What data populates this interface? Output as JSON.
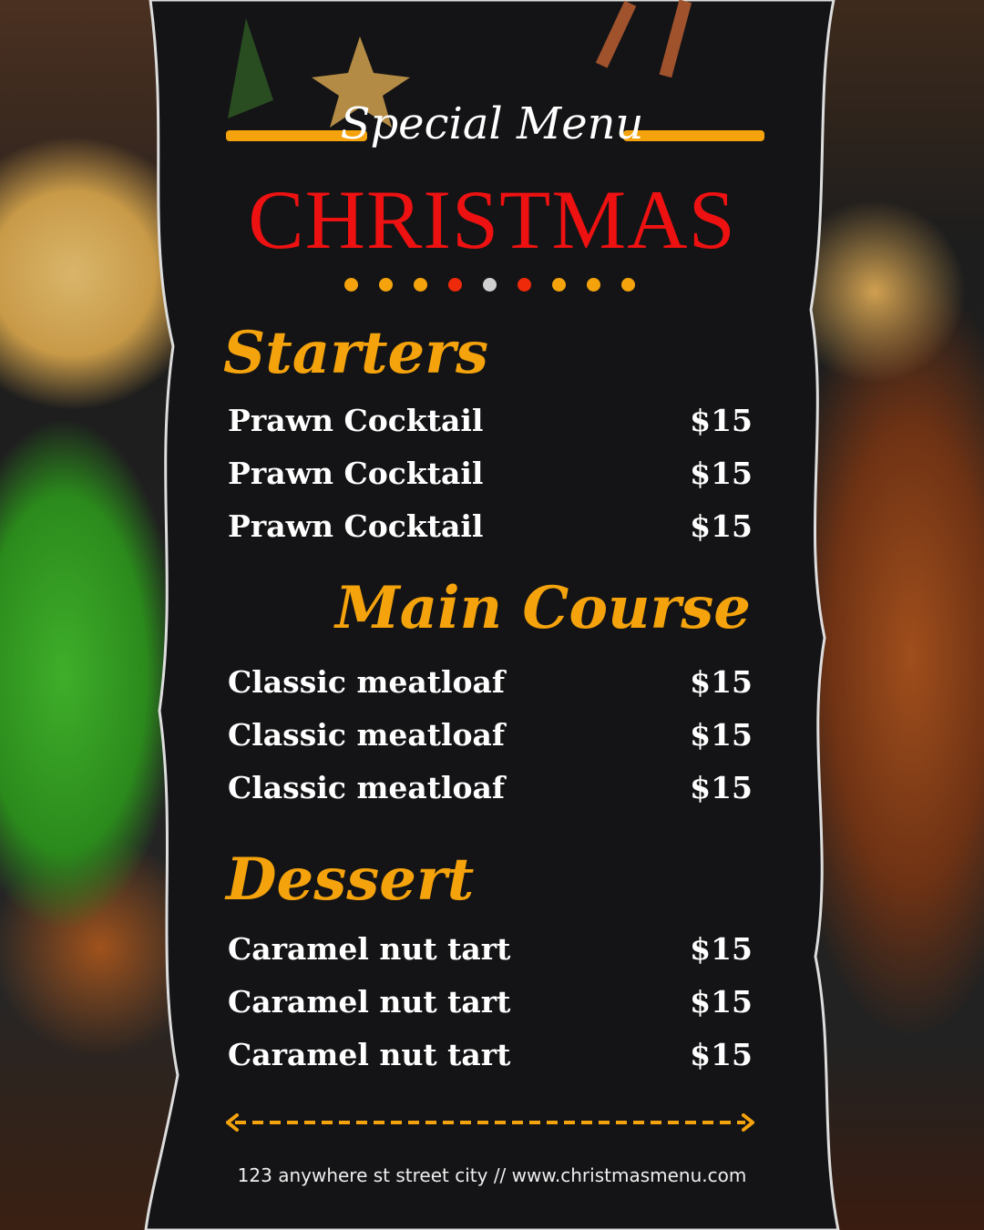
{
  "header": {
    "subtitle": "Special Menu",
    "title": "CHRISTMAS"
  },
  "colors": {
    "accent": "#f5a30c",
    "title": "#ee1111",
    "panel": "#141416"
  },
  "dots": [
    "#f5a30c",
    "#f5a30c",
    "#f5a30c",
    "#ee2a0a",
    "#d0d0d0",
    "#ee2a0a",
    "#f5a30c",
    "#f5a30c",
    "#f5a30c"
  ],
  "sections": [
    {
      "title": "Starters",
      "items": [
        {
          "name": "Prawn Cocktail",
          "price": "$15"
        },
        {
          "name": "Prawn Cocktail",
          "price": "$15"
        },
        {
          "name": "Prawn Cocktail",
          "price": "$15"
        }
      ]
    },
    {
      "title": "Main Course",
      "items": [
        {
          "name": "Classic meatloaf",
          "price": "$15"
        },
        {
          "name": "Classic meatloaf",
          "price": "$15"
        },
        {
          "name": "Classic meatloaf",
          "price": "$15"
        }
      ]
    },
    {
      "title": "Dessert",
      "items": [
        {
          "name": "Caramel nut tart",
          "price": "$15"
        },
        {
          "name": "Caramel nut tart",
          "price": "$15"
        },
        {
          "name": "Caramel nut tart",
          "price": "$15"
        }
      ]
    }
  ],
  "footer": {
    "text": "123 anywhere st street city  //  www.christmasmenu.com"
  }
}
